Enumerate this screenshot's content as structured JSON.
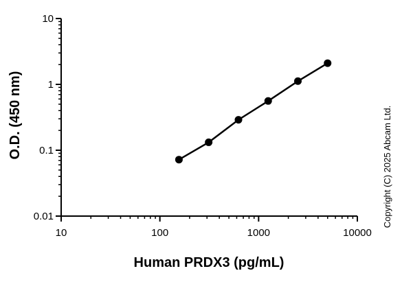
{
  "chart_data": {
    "type": "scatter",
    "title": "",
    "xlabel": "Human PRDX3 (pg/mL)",
    "ylabel": "O.D. (450 nm)",
    "xscale": "log",
    "yscale": "log",
    "xlim": [
      10,
      10000
    ],
    "ylim": [
      0.01,
      10
    ],
    "xticks": [
      {
        "value": 10,
        "label": "10"
      },
      {
        "value": 100,
        "label": "100"
      },
      {
        "value": 1000,
        "label": "1000"
      },
      {
        "value": 10000,
        "label": "10000"
      }
    ],
    "yticks": [
      {
        "value": 0.01,
        "label": "0.01"
      },
      {
        "value": 0.1,
        "label": "0.1"
      },
      {
        "value": 1,
        "label": "1"
      },
      {
        "value": 10,
        "label": "10"
      }
    ],
    "grid": false,
    "legend": "none",
    "series": [
      {
        "x": [
          156,
          312,
          625,
          1250,
          2500,
          5000
        ],
        "y": [
          0.072,
          0.132,
          0.29,
          0.56,
          1.12,
          2.1
        ]
      }
    ],
    "line": "connected",
    "color": "#000000"
  },
  "copyright": "Copyright (C) 2025 Abcam Ltd."
}
